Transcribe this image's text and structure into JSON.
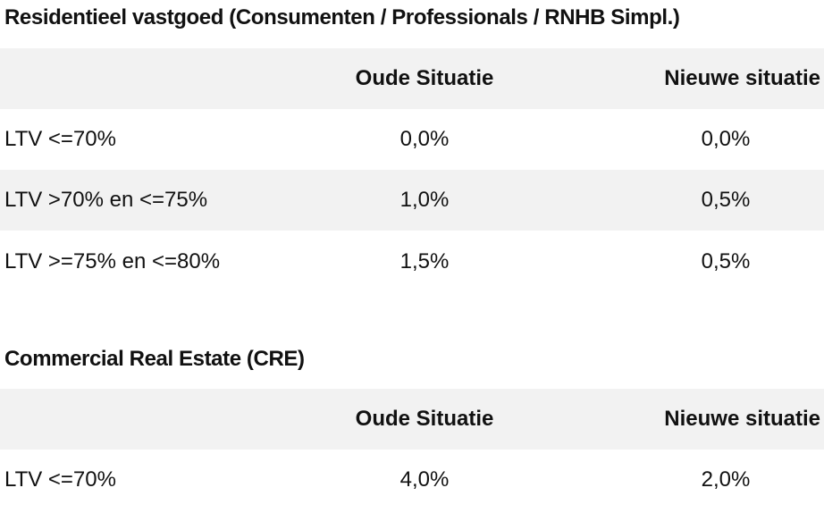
{
  "residential": {
    "title": "Residentieel vastgoed (Consumenten / Professionals / RNHB Simpl.)",
    "header": {
      "col_old": "Oude Situatie",
      "col_new": "Nieuwe situatie"
    },
    "rows": [
      {
        "label": "LTV <=70%",
        "old": "0,0%",
        "new": "0,0%"
      },
      {
        "label": "LTV >70% en <=75%",
        "old": "1,0%",
        "new": "0,5%"
      },
      {
        "label": "LTV >=75% en <=80%",
        "old": "1,5%",
        "new": "0,5%"
      }
    ]
  },
  "commercial": {
    "title": "Commercial Real Estate (CRE)",
    "header": {
      "col_old": "Oude Situatie",
      "col_new": "Nieuwe situatie"
    },
    "rows": [
      {
        "label": "LTV <=70%",
        "old": "4,0%",
        "new": "2,0%"
      }
    ]
  }
}
